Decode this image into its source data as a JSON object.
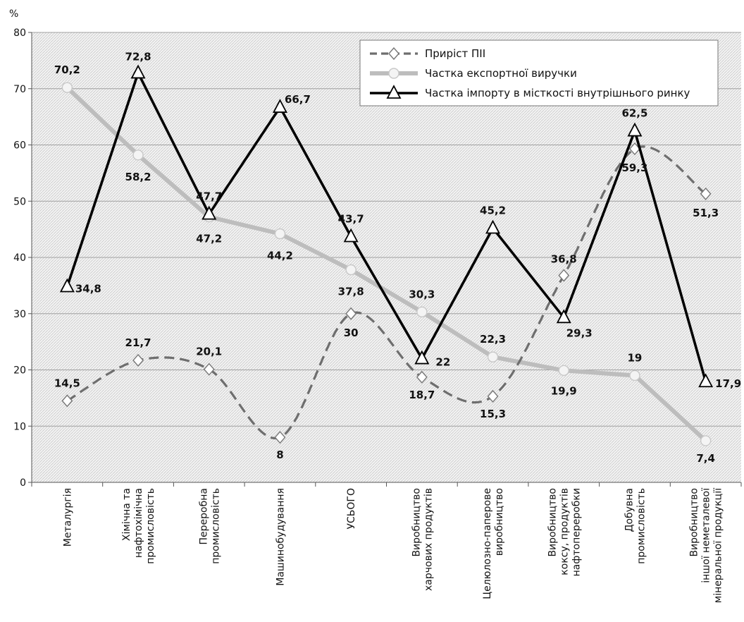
{
  "chart_data": {
    "type": "line",
    "ylabel": "%",
    "ylim": [
      0,
      80
    ],
    "yticks": [
      0,
      10,
      20,
      30,
      40,
      50,
      60,
      70,
      80
    ],
    "grid": true,
    "legend_position": "top-right",
    "categories": [
      [
        "Металургія"
      ],
      [
        "Хімічна та",
        "нафтохімічна",
        "промисловість"
      ],
      [
        "Переробна",
        "промисловість"
      ],
      [
        "Машинобудування"
      ],
      [
        "УСЬОГО"
      ],
      [
        "Виробництво",
        "харчових продуктів"
      ],
      [
        "Целюлозно-паперове",
        "виробництво"
      ],
      [
        "Виробництво",
        "коксу, продуктів",
        "нафтопереробки"
      ],
      [
        "Добувна",
        "промисловість"
      ],
      [
        "Виробництво",
        "іншої неметалевої",
        "мінеральної продукції"
      ]
    ],
    "series": [
      {
        "name": "Приріст ПІІ",
        "values": [
          14.5,
          21.7,
          20.1,
          8,
          30,
          18.7,
          15.3,
          36.8,
          59.3,
          51.3
        ],
        "labels": [
          "14,5",
          "21,7",
          "20,1",
          "8",
          "30",
          "18,7",
          "15,3",
          "36,8",
          "59,3",
          "51,3"
        ],
        "color": "#6e6e6e",
        "style": "dashed-smooth",
        "marker": "diamond"
      },
      {
        "name": "Частка експортної виручки",
        "values": [
          70.2,
          58.2,
          47.2,
          44.2,
          37.8,
          30.3,
          22.3,
          19.9,
          19,
          7.4
        ],
        "labels": [
          "70,2",
          "58,2",
          "47,2",
          "44,2",
          "37,8",
          "30,3",
          "22,3",
          "19,9",
          "19",
          "7,4"
        ],
        "color": "#bdbdbd",
        "style": "solid-thick",
        "marker": "circle"
      },
      {
        "name": "Частка імпорту в місткості внутрішнього ринку",
        "values": [
          34.8,
          72.8,
          47.7,
          66.7,
          43.7,
          22,
          45.2,
          29.3,
          62.5,
          17.9
        ],
        "labels": [
          "34,8",
          "72,8",
          "47,7",
          "66,7",
          "43,7",
          "22",
          "45,2",
          "29,3",
          "62,5",
          "17,9"
        ],
        "color": "#000000",
        "style": "solid",
        "marker": "triangle"
      }
    ]
  }
}
